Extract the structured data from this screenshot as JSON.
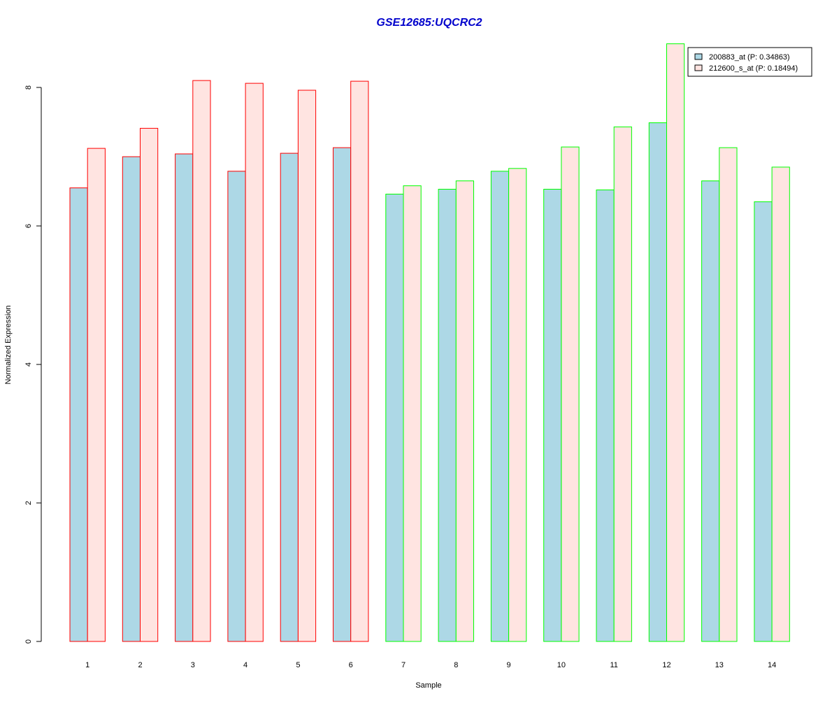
{
  "chart_data": {
    "type": "bar",
    "title": "GSE12685:UQCRC2",
    "xlabel": "Sample",
    "ylabel": "Normalized Expression",
    "categories": [
      "1",
      "2",
      "3",
      "4",
      "5",
      "6",
      "7",
      "8",
      "9",
      "10",
      "11",
      "12",
      "13",
      "14"
    ],
    "y_ticks": [
      "0",
      "2",
      "4",
      "6",
      "8"
    ],
    "ylim": [
      0,
      8.7
    ],
    "grid": false,
    "legend_position": "top-right",
    "series": [
      {
        "name": "200883_at (P: 0.34863)",
        "fill": "#add8e6",
        "values": [
          6.55,
          7.0,
          7.04,
          6.79,
          7.05,
          7.13,
          6.46,
          6.53,
          6.79,
          6.53,
          6.52,
          7.49,
          6.65,
          6.35
        ]
      },
      {
        "name": "212600_s_at (P: 0.18494)",
        "fill": "#ffe4e1",
        "values": [
          7.12,
          7.41,
          8.1,
          8.06,
          7.96,
          8.09,
          6.58,
          6.65,
          6.83,
          7.14,
          7.43,
          8.63,
          7.13,
          6.85
        ]
      }
    ],
    "group_outline_colors": [
      "#ff0000",
      "#ff0000",
      "#ff0000",
      "#ff0000",
      "#ff0000",
      "#ff0000",
      "#00ff00",
      "#00ff00",
      "#00ff00",
      "#00ff00",
      "#00ff00",
      "#00ff00",
      "#00ff00",
      "#00ff00"
    ],
    "colors": {
      "title": "#0000cc",
      "axis": "#000000",
      "legend_border": "#000000"
    }
  }
}
